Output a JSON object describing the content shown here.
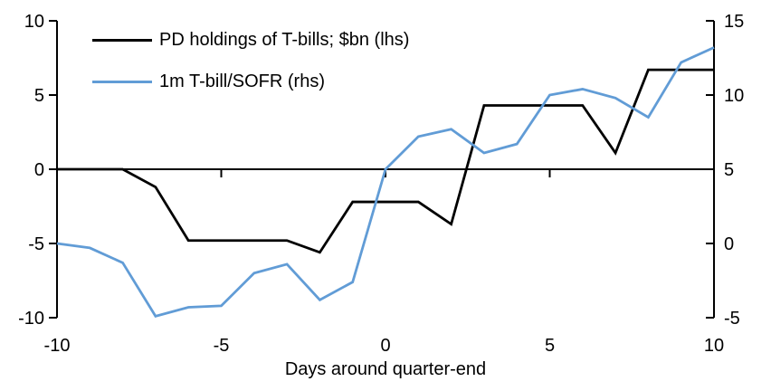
{
  "chart_data": {
    "type": "line",
    "xlabel": "Days around quarter-end",
    "x": [
      -10,
      -9,
      -8,
      -7,
      -6,
      -5,
      -4,
      -3,
      -2,
      -1,
      0,
      1,
      2,
      3,
      4,
      5,
      6,
      7,
      8,
      9,
      10
    ],
    "x_ticks": [
      -10,
      -5,
      0,
      5,
      10
    ],
    "left_axis": {
      "min": -10,
      "max": 10,
      "ticks": [
        10,
        5,
        0,
        -5,
        -10
      ]
    },
    "right_axis": {
      "min": -5,
      "max": 15,
      "ticks": [
        15,
        10,
        5,
        0,
        -5
      ]
    },
    "grid": false,
    "legend_position": "top-left",
    "background": "#ffffff",
    "series": [
      {
        "name": "PD holdings of T-bills; $bn (lhs)",
        "axis": "left",
        "color": "#000000",
        "values": [
          0,
          0,
          0,
          -1.2,
          -4.8,
          -4.8,
          -4.8,
          -4.8,
          -5.6,
          -2.2,
          -2.2,
          -2.2,
          -3.7,
          4.3,
          4.3,
          4.3,
          4.3,
          1.1,
          6.7,
          6.7,
          6.7
        ]
      },
      {
        "name": "1m T-bill/SOFR (rhs)",
        "axis": "right",
        "color": "#619cd6",
        "values": [
          0.0,
          -0.3,
          -1.3,
          -4.9,
          -4.3,
          -4.2,
          -2.0,
          -1.4,
          -3.8,
          -2.6,
          5.0,
          7.2,
          7.7,
          6.1,
          6.7,
          10.0,
          10.4,
          9.8,
          8.5,
          12.2,
          13.2
        ]
      }
    ]
  }
}
